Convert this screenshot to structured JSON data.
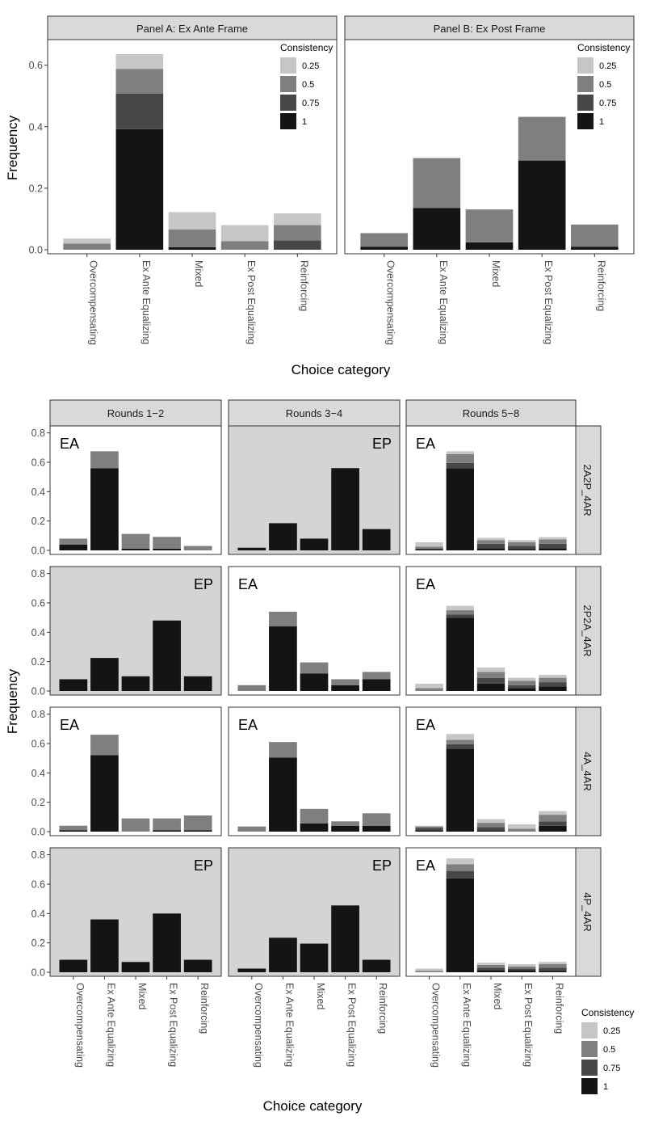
{
  "chart_data": [
    {
      "type": "bar",
      "stacked": true,
      "facet_title": "Panel A: Ex Ante Frame",
      "categories": [
        "Overcompensating",
        "Ex Ante Equalizing",
        "Mixed",
        "Ex Post Equalizing",
        "Reinforcing"
      ],
      "series": [
        {
          "name": "1",
          "values": [
            0.0,
            0.392,
            0.008,
            0.0,
            0.0
          ]
        },
        {
          "name": "0.75",
          "values": [
            0.0,
            0.116,
            0.0,
            0.0,
            0.03
          ]
        },
        {
          "name": "0.5",
          "values": [
            0.02,
            0.08,
            0.058,
            0.028,
            0.05
          ]
        },
        {
          "name": "0.25",
          "values": [
            0.016,
            0.048,
            0.056,
            0.052,
            0.038
          ]
        }
      ],
      "ylim": [
        0,
        0.67
      ],
      "yticks": [
        "0.0",
        "0.2",
        "0.4",
        "0.6"
      ]
    },
    {
      "type": "bar",
      "stacked": true,
      "facet_title": "Panel B: Ex Post Frame",
      "categories": [
        "Overcompensating",
        "Ex Ante Equalizing",
        "Mixed",
        "Ex Post Equalizing",
        "Reinforcing"
      ],
      "series": [
        {
          "name": "1",
          "values": [
            0.01,
            0.136,
            0.024,
            0.29,
            0.01
          ]
        },
        {
          "name": "0.75",
          "values": [
            0.0,
            0.0,
            0.0,
            0.0,
            0.0
          ]
        },
        {
          "name": "0.5",
          "values": [
            0.044,
            0.162,
            0.107,
            0.142,
            0.072
          ]
        },
        {
          "name": "0.25",
          "values": [
            0.0,
            0.0,
            0.0,
            0.0,
            0.0
          ]
        }
      ],
      "ylim": [
        0,
        0.67
      ],
      "yticks": [
        "0.0",
        "0.2",
        "0.4",
        "0.6"
      ]
    },
    {
      "type": "bar",
      "stacked": true,
      "faceted": true,
      "col_facets": [
        "Rounds 1−2",
        "Rounds 3−4",
        "Rounds 5−8"
      ],
      "row_facets": [
        "2A2P_4AR",
        "2P2A_4AR",
        "4A_4AR",
        "4P_4AR"
      ],
      "categories": [
        "Overcompensating",
        "Ex Ante Equalizing",
        "Mixed",
        "Ex Post Equalizing",
        "Reinforcing"
      ],
      "ylim": [
        0,
        0.82
      ],
      "yticks": [
        "0.0",
        "0.2",
        "0.4",
        "0.6",
        "0.8"
      ],
      "panels": [
        {
          "row": 0,
          "col": 0,
          "tag": "EA",
          "shaded": false,
          "stacks": [
            [
              0.04,
              0,
              0.04,
              0
            ],
            [
              0.56,
              0,
              0.115,
              0
            ],
            [
              0.012,
              0,
              0.1,
              0
            ],
            [
              0.012,
              0,
              0.08,
              0
            ],
            [
              0,
              0,
              0.03,
              0
            ]
          ]
        },
        {
          "row": 0,
          "col": 1,
          "tag": "EP",
          "shaded": true,
          "stacks": [
            [
              0.018,
              0,
              0,
              0
            ],
            [
              0.185,
              0,
              0,
              0
            ],
            [
              0.08,
              0,
              0,
              0
            ],
            [
              0.56,
              0,
              0,
              0
            ],
            [
              0.145,
              0,
              0,
              0
            ]
          ]
        },
        {
          "row": 0,
          "col": 2,
          "tag": "EA",
          "shaded": false,
          "stacks": [
            [
              0.01,
              0,
              0.015,
              0.03
            ],
            [
              0.56,
              0.035,
              0.06,
              0.02
            ],
            [
              0.015,
              0.03,
              0.025,
              0.015
            ],
            [
              0.01,
              0.02,
              0.025,
              0.015
            ],
            [
              0.015,
              0.03,
              0.03,
              0.015
            ]
          ]
        },
        {
          "row": 1,
          "col": 0,
          "tag": "EP",
          "shaded": true,
          "stacks": [
            [
              0.08,
              0,
              0,
              0
            ],
            [
              0.225,
              0,
              0,
              0
            ],
            [
              0.1,
              0,
              0,
              0
            ],
            [
              0.48,
              0,
              0,
              0
            ],
            [
              0.1,
              0,
              0,
              0
            ]
          ]
        },
        {
          "row": 1,
          "col": 1,
          "tag": "EA",
          "shaded": false,
          "stacks": [
            [
              0,
              0,
              0.04,
              0
            ],
            [
              0.44,
              0,
              0.1,
              0
            ],
            [
              0.12,
              0,
              0.075,
              0
            ],
            [
              0.04,
              0,
              0.04,
              0
            ],
            [
              0.08,
              0,
              0.05,
              0
            ]
          ]
        },
        {
          "row": 1,
          "col": 2,
          "tag": "EA",
          "shaded": false,
          "stacks": [
            [
              0,
              0,
              0.02,
              0.03
            ],
            [
              0.5,
              0.02,
              0.03,
              0.03
            ],
            [
              0.05,
              0.04,
              0.04,
              0.03
            ],
            [
              0.02,
              0.02,
              0.03,
              0.02
            ],
            [
              0.03,
              0.03,
              0.03,
              0.02
            ]
          ]
        },
        {
          "row": 2,
          "col": 0,
          "tag": "EA",
          "shaded": false,
          "stacks": [
            [
              0.01,
              0,
              0.03,
              0
            ],
            [
              0.52,
              0,
              0.14,
              0
            ],
            [
              0,
              0,
              0.09,
              0
            ],
            [
              0.01,
              0,
              0.08,
              0
            ],
            [
              0.01,
              0,
              0.1,
              0
            ]
          ]
        },
        {
          "row": 2,
          "col": 1,
          "tag": "EA",
          "shaded": false,
          "stacks": [
            [
              0,
              0,
              0.035,
              0
            ],
            [
              0.505,
              0,
              0.105,
              0
            ],
            [
              0.055,
              0,
              0.1,
              0
            ],
            [
              0.04,
              0,
              0.03,
              0
            ],
            [
              0.04,
              0,
              0.085,
              0
            ]
          ]
        },
        {
          "row": 2,
          "col": 2,
          "tag": "EA",
          "shaded": false,
          "stacks": [
            [
              0.01,
              0.015,
              0.01,
              0.005
            ],
            [
              0.565,
              0.03,
              0.03,
              0.04
            ],
            [
              0.01,
              0.02,
              0.03,
              0.025
            ],
            [
              0,
              0,
              0.02,
              0.03
            ],
            [
              0.04,
              0.03,
              0.045,
              0.025
            ]
          ]
        },
        {
          "row": 3,
          "col": 0,
          "tag": "EP",
          "shaded": true,
          "stacks": [
            [
              0.085,
              0,
              0,
              0
            ],
            [
              0.36,
              0,
              0,
              0
            ],
            [
              0.07,
              0,
              0,
              0
            ],
            [
              0.4,
              0,
              0,
              0
            ],
            [
              0.085,
              0,
              0,
              0
            ]
          ]
        },
        {
          "row": 3,
          "col": 1,
          "tag": "EP",
          "shaded": true,
          "stacks": [
            [
              0.025,
              0,
              0,
              0
            ],
            [
              0.235,
              0,
              0,
              0
            ],
            [
              0.195,
              0,
              0,
              0
            ],
            [
              0.455,
              0,
              0,
              0
            ],
            [
              0.085,
              0,
              0,
              0
            ]
          ]
        },
        {
          "row": 3,
          "col": 2,
          "tag": "EA",
          "shaded": false,
          "stacks": [
            [
              0,
              0,
              0.01,
              0.015
            ],
            [
              0.64,
              0.05,
              0.045,
              0.04
            ],
            [
              0.015,
              0.015,
              0.02,
              0.015
            ],
            [
              0.015,
              0.01,
              0.015,
              0.015
            ],
            [
              0.01,
              0.02,
              0.025,
              0.015
            ]
          ]
        }
      ]
    }
  ],
  "axes": {
    "top_xlabel": "Choice category",
    "top_ylabel": "Frequency",
    "bottom_xlabel": "Choice category",
    "bottom_ylabel": "Frequency"
  },
  "legend": {
    "title": "Consistency",
    "items": [
      {
        "label": "0.25",
        "color": "#c6c6c6"
      },
      {
        "label": "0.5",
        "color": "#7f7f7f"
      },
      {
        "label": "0.75",
        "color": "#474747"
      },
      {
        "label": "1",
        "color": "#141414"
      }
    ]
  },
  "colors": {
    "strip_fill": "#d9d9d9",
    "shaded_panel": "#d4d4d4",
    "axis_text": "#4d4d4d"
  }
}
